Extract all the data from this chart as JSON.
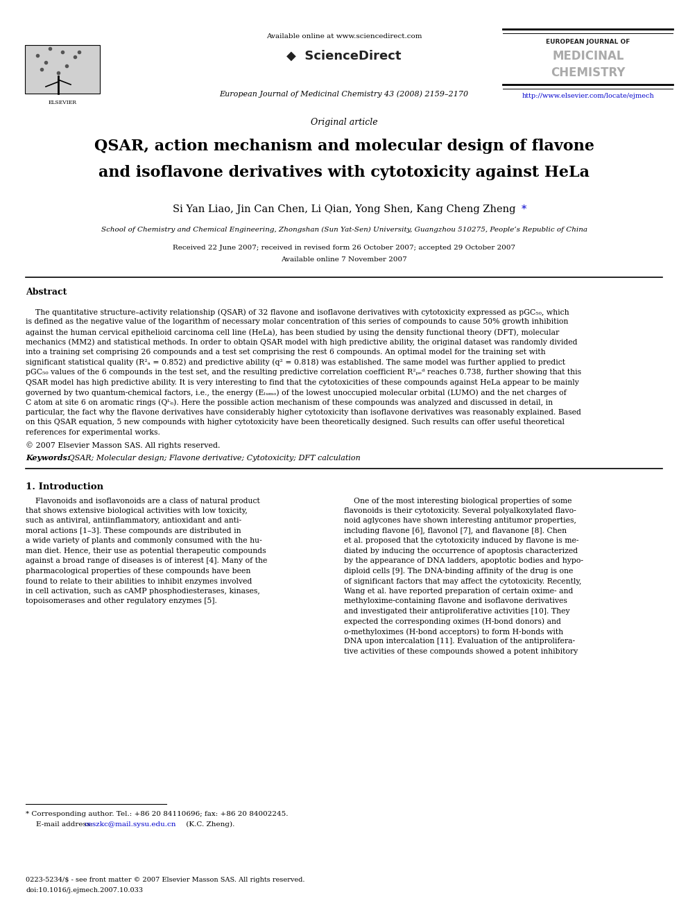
{
  "bg_color": "#ffffff",
  "page_width": 9.92,
  "page_height": 13.23,
  "dpi": 100,
  "header": {
    "available_online": "Available online at www.sciencedirect.com",
    "sciencedirect": "◆ ScienceDirect",
    "journal_line": "European Journal of Medicinal Chemistry 43 (2008) 2159–2170",
    "ej_line1": "EUROPEAN JOURNAL OF",
    "ej_line2": "MEDICINAL",
    "ej_line3": "CHEMISTRY",
    "url": "http://www.elsevier.com/locate/ejmech"
  },
  "article_type": "Original article",
  "title_line1": "QSAR, action mechanism and molecular design of flavone",
  "title_line2": "and isoflavone derivatives with cytotoxicity against HeLa",
  "authors": "Si Yan Liao, Jin Can Chen, Li Qian, Yong Shen, Kang Cheng Zheng",
  "affiliation": "School of Chemistry and Chemical Engineering, Zhongshan (Sun Yat-Sen) University, Guangzhou 510275, People’s Republic of China",
  "received": "Received 22 June 2007; received in revised form 26 October 2007; accepted 29 October 2007",
  "available_online_date": "Available online 7 November 2007",
  "abstract_title": "Abstract",
  "copyright": "© 2007 Elsevier Masson SAS. All rights reserved.",
  "keywords_label": "Keywords:",
  "keywords_text": " QSAR; Molecular design; Flavone derivative; Cytotoxicity; DFT calculation",
  "intro_heading": "1. Introduction",
  "footnote_star": "* Corresponding author. Tel.: +86 20 84110696; fax: +86 20 84002245.",
  "footnote_email_label": "E-mail address: ",
  "footnote_email_link": "ceszkc@mail.sysu.edu.cn",
  "footnote_email_end": " (K.C. Zheng).",
  "bottom_line1": "0223-5234/$ - see front matter © 2007 Elsevier Masson SAS. All rights reserved.",
  "bottom_line2": "doi:10.1016/j.ejmech.2007.10.033"
}
